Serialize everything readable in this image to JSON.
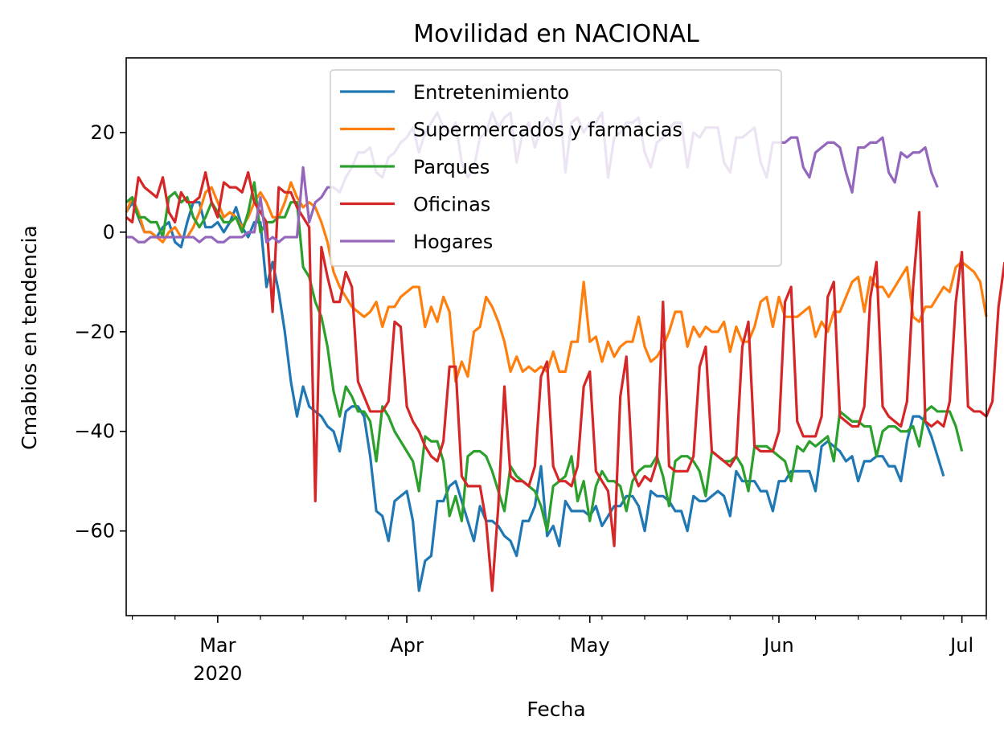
{
  "chart_data": {
    "type": "line",
    "title": "Movilidad en NACIONAL",
    "xlabel": "Fecha",
    "ylabel": "Cmabios en tendencia",
    "x_start": "2020-02-15",
    "x_end": "2020-07-05",
    "xlim": [
      "2020-02-15",
      "2020-07-05"
    ],
    "ylim": [
      -77,
      35
    ],
    "yticks": [
      20,
      0,
      -20,
      -40,
      -60
    ],
    "ytick_labels": [
      "20",
      "0",
      "−20",
      "−40",
      "−60"
    ],
    "xticks": [
      {
        "date": "2020-03-01",
        "label": "Mar",
        "sub": "2020"
      },
      {
        "date": "2020-04-01",
        "label": "Apr",
        "sub": ""
      },
      {
        "date": "2020-05-01",
        "label": "May",
        "sub": ""
      },
      {
        "date": "2020-06-01",
        "label": "Jun",
        "sub": ""
      },
      {
        "date": "2020-07-01",
        "label": "Jul",
        "sub": ""
      }
    ],
    "grid": false,
    "legend_position": "upper-center",
    "series": [
      {
        "name": "Entretenimiento",
        "color": "#1f77b4",
        "values": [
          4,
          6,
          3,
          0,
          0,
          -1,
          1,
          2,
          -2,
          -3,
          2,
          6,
          6,
          1,
          1,
          2,
          0,
          2,
          5,
          1,
          -1,
          2,
          2,
          -11,
          -6,
          -12,
          -20,
          -30,
          -37,
          -31,
          -35,
          -36,
          -37,
          -39,
          -40,
          -44,
          -36,
          -35,
          -35,
          -37,
          -45,
          -56,
          -57,
          -62,
          -54,
          -53,
          -52,
          -58,
          -72,
          -66,
          -65,
          -54,
          -54,
          -51,
          -50,
          -54,
          -58,
          -62,
          -55,
          -58,
          -58,
          -59,
          -61,
          -62,
          -65,
          -58,
          -58,
          -55,
          -47,
          -61,
          -59,
          -63,
          -54,
          -56,
          -56,
          -56,
          -57,
          -55,
          -59,
          -57,
          -55,
          -55,
          -53,
          -53,
          -55,
          -60,
          -52,
          -53,
          -53,
          -54,
          -56,
          -56,
          -60,
          -53,
          -54,
          -54,
          -53,
          -52,
          -53,
          -57,
          -48,
          -50,
          -50,
          -50,
          -52,
          -52,
          -56,
          -50,
          -50,
          -48,
          -48,
          -48,
          -48,
          -52,
          -43,
          -42,
          -43,
          -44,
          -46,
          -45,
          -50,
          -46,
          -46,
          -45,
          -45,
          -47,
          -47,
          -50,
          -42,
          -37,
          -37,
          -38,
          -41,
          -45,
          -49
        ]
      },
      {
        "name": "Supermercados y farmacias",
        "color": "#ff7f0e",
        "values": [
          4,
          7,
          4,
          0,
          0,
          -1,
          -2,
          0,
          1,
          -1,
          -1,
          1,
          4,
          8,
          9,
          6,
          3,
          4,
          3,
          1,
          3,
          6,
          8,
          6,
          3,
          3,
          6,
          10,
          7,
          5,
          6,
          5,
          2,
          -2,
          -8,
          -11,
          -13,
          -15,
          -16,
          -17,
          -16,
          -14,
          -19,
          -15,
          -15,
          -13,
          -12,
          -11,
          -11,
          -19,
          -15,
          -18,
          -13,
          -16,
          -30,
          -26,
          -29,
          -20,
          -19,
          -13,
          -15,
          -18,
          -22,
          -28,
          -25,
          -28,
          -27,
          -28,
          -27,
          -28,
          -24,
          -28,
          -28,
          -22,
          -22,
          -10,
          -22,
          -21,
          -26,
          -22,
          -25,
          -23,
          -22,
          -22,
          -17,
          -23,
          -26,
          -25,
          -23,
          -20,
          -16,
          -16,
          -23,
          -19,
          -21,
          -19,
          -20,
          -20,
          -18,
          -24,
          -19,
          -22,
          -22,
          -19,
          -14,
          -13,
          -19,
          -13,
          -17,
          -17,
          -17,
          -16,
          -15,
          -21,
          -18,
          -20,
          -16,
          -16,
          -13,
          -10,
          -9,
          -16,
          -9,
          -11,
          -11,
          -13,
          -11,
          -9,
          -7,
          -17,
          -18,
          -15,
          -15,
          -13,
          -11,
          -12,
          -7,
          -6,
          -7,
          -8,
          -10,
          -17
        ]
      },
      {
        "name": "Parques",
        "color": "#2ca02c",
        "values": [
          6,
          7,
          3,
          3,
          2,
          2,
          -1,
          7,
          8,
          6,
          7,
          3,
          1,
          3,
          6,
          4,
          2,
          2,
          3,
          0,
          4,
          10,
          0,
          2,
          2,
          3,
          3,
          6,
          6,
          -7,
          -9,
          -14,
          -17,
          -23,
          -32,
          -37,
          -31,
          -33,
          -36,
          -36,
          -38,
          -46,
          -35,
          -37,
          -40,
          -42,
          -44,
          -46,
          -52,
          -41,
          -42,
          -42,
          -46,
          -57,
          -53,
          -58,
          -45,
          -44,
          -44,
          -45,
          -48,
          -52,
          -56,
          -47,
          -49,
          -50,
          -51,
          -52,
          -55,
          -60,
          -51,
          -50,
          -49,
          -45,
          -54,
          -50,
          -58,
          -51,
          -48,
          -50,
          -50,
          -51,
          -56,
          -50,
          -48,
          -47,
          -47,
          -45,
          -49,
          -55,
          -46,
          -45,
          -45,
          -46,
          -48,
          -53,
          -44,
          -45,
          -46,
          -46,
          -45,
          -47,
          -52,
          -43,
          -43,
          -43,
          -44,
          -45,
          -46,
          -50,
          -43,
          -44,
          -42,
          -43,
          -42,
          -41,
          -46,
          -36,
          -37,
          -38,
          -38,
          -39,
          -39,
          -45,
          -40,
          -39,
          -39,
          -40,
          -40,
          -39,
          -43,
          -36,
          -35,
          -36,
          -36,
          -36,
          -39,
          -44
        ]
      },
      {
        "name": "Oficinas",
        "color": "#d62728",
        "values": [
          3,
          2,
          11,
          9,
          8,
          7,
          11,
          4,
          2,
          8,
          6,
          6,
          7,
          12,
          6,
          3,
          10,
          9,
          9,
          8,
          12,
          6,
          4,
          2,
          -16,
          9,
          8,
          8,
          5,
          3,
          1,
          -54,
          -3,
          -9,
          -14,
          -14,
          -8,
          -11,
          -30,
          -33,
          -36,
          -36,
          -36,
          -34,
          -18,
          -19,
          -35,
          -38,
          -40,
          -43,
          -45,
          -46,
          -42,
          -27,
          -27,
          -49,
          -51,
          -51,
          -51,
          -58,
          -72,
          -55,
          -31,
          -49,
          -50,
          -50,
          -51,
          -47,
          -29,
          -26,
          -47,
          -50,
          -50,
          -51,
          -47,
          -31,
          -28,
          -48,
          -50,
          -52,
          -63,
          -33,
          -25,
          -48,
          -51,
          -49,
          -50,
          -46,
          -14,
          -47,
          -48,
          -48,
          -48,
          -45,
          -27,
          -23,
          -44,
          -45,
          -46,
          -47,
          -45,
          -23,
          -18,
          -43,
          -44,
          -44,
          -44,
          -40,
          -14,
          -11,
          -38,
          -41,
          -41,
          -41,
          -37,
          -13,
          -10,
          -37,
          -38,
          -39,
          -39,
          -35,
          -13,
          -6,
          -35,
          -37,
          -38,
          -39,
          -34,
          -11,
          4,
          -38,
          -39,
          -38,
          -39,
          -34,
          -14,
          -4,
          -35,
          -36,
          -36,
          -37,
          -34,
          -15,
          -6
        ]
      },
      {
        "name": "Hogares",
        "color": "#9467bd",
        "values": [
          -1,
          -1,
          -2,
          -2,
          -1,
          -1,
          -1,
          -1,
          -1,
          -1,
          -1,
          -1,
          -2,
          -1,
          -1,
          -2,
          -2,
          -1,
          -1,
          -1,
          0,
          0,
          7,
          -2,
          -1,
          -2,
          -1,
          -1,
          -1,
          13,
          2,
          6,
          7,
          9,
          9,
          8,
          11,
          13,
          16,
          16,
          17,
          12,
          11,
          15,
          16,
          18,
          19,
          21,
          16,
          20,
          22,
          24,
          21,
          20,
          22,
          14,
          11,
          13,
          19,
          20,
          24,
          21,
          23,
          24,
          14,
          20,
          22,
          17,
          21,
          23,
          21,
          27,
          12,
          22,
          23,
          20,
          22,
          22,
          24,
          11,
          19,
          20,
          22,
          22,
          23,
          16,
          13,
          18,
          19,
          21,
          22,
          22,
          13,
          20,
          19,
          21,
          21,
          21,
          14,
          12,
          19,
          19,
          20,
          21,
          14,
          11,
          18,
          18,
          18,
          19,
          19,
          13,
          11,
          16,
          17,
          18,
          18,
          17,
          12,
          8,
          17,
          17,
          18,
          18,
          19,
          12,
          10,
          16,
          15,
          16,
          16,
          17,
          12,
          9
        ]
      }
    ]
  }
}
